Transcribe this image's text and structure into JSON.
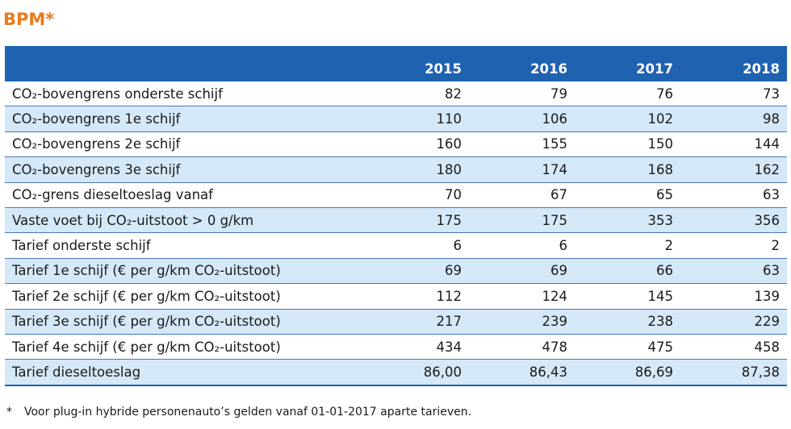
{
  "title": "BPM*",
  "table": {
    "header": {
      "label": "",
      "years": [
        "2015",
        "2016",
        "2017",
        "2018"
      ]
    },
    "rows": [
      {
        "label": "CO₂-bovengrens onderste schijf",
        "values": [
          "82",
          "79",
          "76",
          "73"
        ]
      },
      {
        "label": "CO₂-bovengrens 1e schijf",
        "values": [
          "110",
          "106",
          "102",
          "98"
        ]
      },
      {
        "label": "CO₂-bovengrens 2e schijf",
        "values": [
          "160",
          "155",
          "150",
          "144"
        ]
      },
      {
        "label": "CO₂-bovengrens 3e schijf",
        "values": [
          "180",
          "174",
          "168",
          "162"
        ]
      },
      {
        "label": "CO₂-grens dieseltoeslag vanaf",
        "values": [
          "70",
          "67",
          "65",
          "63"
        ]
      },
      {
        "label": "Vaste voet bij CO₂-uitstoot > 0 g/km",
        "values": [
          "175",
          "175",
          "353",
          "356"
        ]
      },
      {
        "label": "Tarief onderste schijf",
        "values": [
          "6",
          "6",
          "2",
          "2"
        ]
      },
      {
        "label": "Tarief 1e schijf (€ per g/km CO₂-uitstoot)",
        "values": [
          "69",
          "69",
          "66",
          "63"
        ]
      },
      {
        "label": "Tarief 2e schijf (€ per g/km CO₂-uitstoot)",
        "values": [
          "112",
          "124",
          "145",
          "139"
        ]
      },
      {
        "label": "Tarief 3e schijf (€ per g/km CO₂-uitstoot)",
        "values": [
          "217",
          "239",
          "238",
          "229"
        ]
      },
      {
        "label": "Tarief 4e schijf (€ per g/km CO₂-uitstoot)",
        "values": [
          "434",
          "478",
          "475",
          "458"
        ]
      },
      {
        "label": "Tarief dieseltoeslag",
        "values": [
          "86,00",
          "86,43",
          "86,69",
          "87,38"
        ]
      }
    ]
  },
  "footnote": {
    "marker": "*",
    "text": "Voor plug-in hybride personenauto’s gelden vanaf 01-01-2017 aparte tarieven."
  },
  "colors": {
    "title": "#e87a1e",
    "header_bg": "#1f62b0",
    "stripe_bg": "#d5e8f8",
    "rule": "#4a79b8"
  }
}
